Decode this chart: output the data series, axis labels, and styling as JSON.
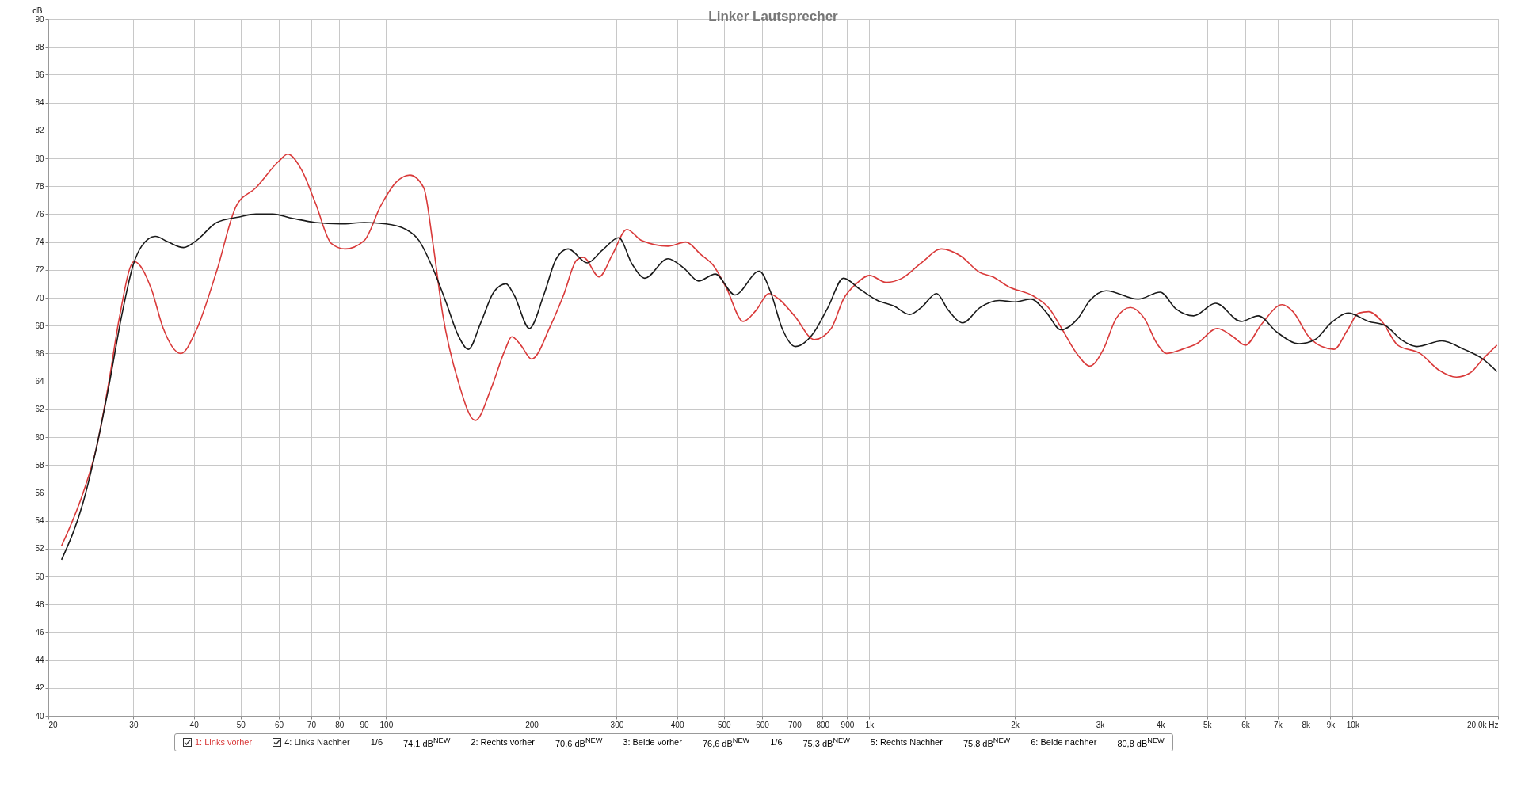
{
  "chart_data": {
    "type": "line",
    "title": "Linker Lautsprecher",
    "ylabel": "dB",
    "xlim": [
      20,
      20000
    ],
    "ylim": [
      40,
      90
    ],
    "log": "x",
    "grid": true,
    "legend": "bottom",
    "line_style": "solid",
    "xticks": [
      20,
      30,
      40,
      50,
      60,
      70,
      80,
      90,
      100,
      200,
      300,
      400,
      500,
      600,
      700,
      800,
      900,
      {
        "value": 1000,
        "label": "1k"
      },
      {
        "value": 2000,
        "label": "2k"
      },
      {
        "value": 3000,
        "label": "3k"
      },
      {
        "value": 4000,
        "label": "4k"
      },
      {
        "value": 5000,
        "label": "5k"
      },
      {
        "value": 6000,
        "label": "6k"
      },
      {
        "value": 7000,
        "label": "7k"
      },
      {
        "value": 8000,
        "label": "8k"
      },
      {
        "value": 9000,
        "label": "9k"
      },
      {
        "value": 10000,
        "label": "10k"
      },
      {
        "value": 20000,
        "label": "20,0k Hz"
      }
    ],
    "yticks": [
      40,
      42,
      44,
      46,
      48,
      50,
      52,
      54,
      56,
      58,
      60,
      62,
      64,
      66,
      68,
      70,
      72,
      74,
      76,
      78,
      80,
      82,
      84,
      86,
      88,
      90
    ],
    "series": [
      {
        "name": "1: Links vorher",
        "color": "#d93a3a",
        "x": [
          21.3,
          23.6,
          25.1,
          26.7,
          28,
          30.1,
          32.7,
          34.5,
          37.6,
          40.5,
          44.6,
          49,
          53.8,
          60,
          62.6,
          66.8,
          71.4,
          77,
          82.2,
          90.1,
          97.5,
          105,
          112,
          119.6,
          125,
          131,
          141,
          153,
          165,
          176,
          182,
          190,
          200,
          219,
          233,
          248,
          256,
          276,
          294,
          315,
          338,
          383,
          417,
          448,
          476,
          506,
          548,
          583,
          620,
          650,
          700,
          770,
          834,
          884,
          939,
          1001,
          1084,
          1169,
          1281,
          1410,
          1545,
          1695,
          1800,
          1940,
          2190,
          2360,
          2500,
          2700,
          2860,
          3050,
          3240,
          3470,
          3710,
          3940,
          4120,
          4440,
          4760,
          5250,
          5660,
          6000,
          6480,
          7150,
          7530,
          8120,
          8630,
          9160,
          9730,
          10300,
          10800,
          11500,
          12400,
          13800,
          15100,
          16400,
          17500,
          18600,
          19900
        ],
        "values": [
          52.2,
          56,
          59.1,
          64,
          68.4,
          72.6,
          70.6,
          67.9,
          66,
          67.7,
          71.9,
          76.6,
          77.9,
          79.8,
          80.3,
          79.2,
          76.8,
          73.9,
          73.5,
          74.1,
          76.6,
          78.3,
          78.8,
          77.9,
          73.9,
          68.8,
          64,
          61.2,
          63.5,
          66.2,
          67.2,
          66.6,
          65.6,
          68,
          70.2,
          72.7,
          72.9,
          71.5,
          73.1,
          74.9,
          74.1,
          73.7,
          74,
          73.1,
          72.3,
          70.7,
          68.3,
          69.1,
          70.3,
          69.9,
          68.7,
          67,
          67.8,
          69.9,
          71,
          71.6,
          71.1,
          71.4,
          72.5,
          73.5,
          73,
          71.8,
          71.5,
          70.8,
          70.1,
          69.2,
          67.8,
          65.9,
          65.1,
          66.3,
          68.5,
          69.3,
          68.5,
          66.7,
          66,
          66.3,
          66.7,
          67.8,
          67.2,
          66.6,
          68.1,
          69.5,
          69,
          67.2,
          66.5,
          66.3,
          67.6,
          68.9,
          69,
          68.3,
          66.6,
          66,
          64.8,
          64.3,
          64.6,
          65.6,
          66.6
        ]
      },
      {
        "name": "4: Links Nachher",
        "color": "#1a1a1a",
        "x": [
          21.3,
          23.6,
          25.1,
          26.7,
          28.4,
          30,
          31.2,
          33.3,
          35.4,
          38.1,
          40.5,
          44.6,
          49.7,
          53.8,
          58.2,
          64,
          71.4,
          80.5,
          90.1,
          100,
          110,
          117,
          125,
          133,
          141,
          148,
          157,
          167,
          177,
          184,
          198,
          212,
          225,
          238,
          261,
          280,
          303,
          323,
          343,
          383,
          414,
          443,
          480,
          527,
          592,
          625,
          660,
          703,
          760,
          821,
          884,
          957,
          1040,
          1125,
          1212,
          1281,
          1378,
          1457,
          1561,
          1695,
          1857,
          2000,
          2160,
          2330,
          2490,
          2700,
          2860,
          3090,
          3600,
          4000,
          4310,
          4690,
          5210,
          5880,
          6380,
          6990,
          7760,
          8370,
          9030,
          9800,
          10800,
          11700,
          12600,
          13600,
          15300,
          17000,
          18600,
          19900
        ],
        "values": [
          51.2,
          55.3,
          59.1,
          63.7,
          68.8,
          72.4,
          73.7,
          74.4,
          74,
          73.6,
          74.1,
          75.4,
          75.8,
          76,
          76,
          75.7,
          75.4,
          75.3,
          75.4,
          75.3,
          74.9,
          74.1,
          72.1,
          69.7,
          67.3,
          66.3,
          68.2,
          70.4,
          71,
          70.2,
          67.8,
          70.2,
          72.8,
          73.5,
          72.5,
          73.4,
          74.3,
          72.4,
          71.4,
          72.8,
          72.1,
          71.2,
          71.7,
          70.2,
          71.9,
          70.4,
          67.8,
          66.5,
          67.3,
          69.3,
          71.4,
          70.6,
          69.8,
          69.4,
          68.8,
          69.3,
          70.3,
          69.1,
          68.2,
          69.3,
          69.8,
          69.7,
          69.9,
          68.9,
          67.7,
          68.5,
          69.8,
          70.5,
          69.9,
          70.4,
          69.2,
          68.7,
          69.6,
          68.3,
          68.7,
          67.5,
          66.7,
          67,
          68.2,
          68.9,
          68.3,
          68,
          67,
          66.5,
          66.9,
          66.3,
          65.6,
          64.7
        ]
      }
    ],
    "annotations": [
      "1/6",
      "74,1 dB$^{NEW}$",
      "2: Rechts vorher",
      "70,6 dB$^{NEW}$",
      "3: Beide vorher",
      "76,6 dB$^{NEW}$",
      "1/6",
      "75,3 dB$^{NEW}$",
      "5: Rechts Nachher",
      "75,8 dB$^{NEW}$",
      "6: Beide nachher",
      "80,8 dB$^{NEW}$"
    ]
  }
}
